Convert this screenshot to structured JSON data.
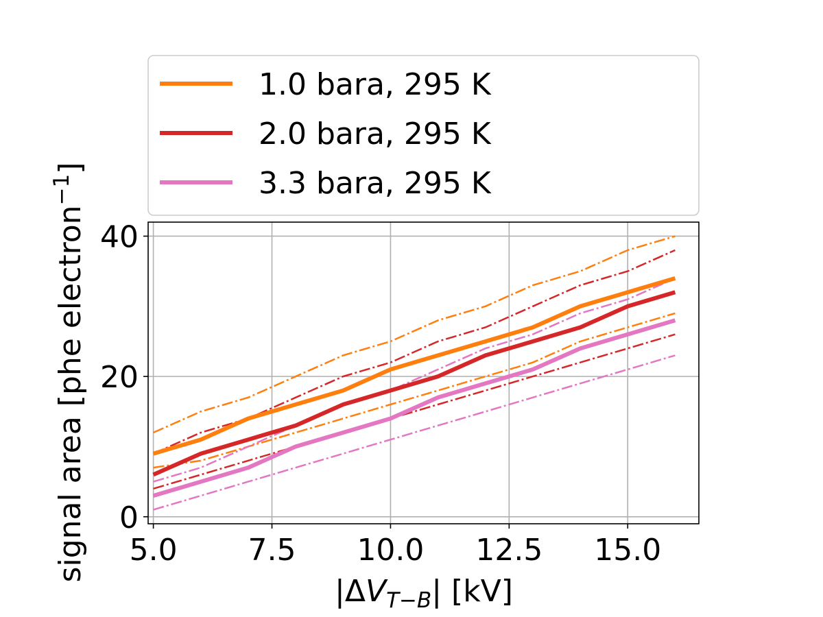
{
  "chart_data": {
    "type": "line",
    "x": [
      5,
      6,
      7,
      8,
      9,
      10,
      11,
      12,
      13,
      14,
      15,
      16
    ],
    "xlim": [
      4.89,
      16.5
    ],
    "ylim": [
      -1,
      42
    ],
    "xticks": [
      5.0,
      7.5,
      10.0,
      12.5,
      15.0
    ],
    "xtick_labels": [
      "5.0",
      "7.5",
      "10.0",
      "12.5",
      "15.0"
    ],
    "yticks": [
      0,
      20,
      40
    ],
    "ytick_labels": [
      "0",
      "20",
      "40"
    ],
    "xlabel_parts": {
      "prefix": "|Δ",
      "var": "V",
      "sub": "T−B",
      "suffix": "| [kV]"
    },
    "ylabel_parts": {
      "main": "signal area [phe electron",
      "sup": "−1",
      "close": "]"
    },
    "grid": true,
    "legend_position": "above plot",
    "series": [
      {
        "name": "1.0 bara, 295 K",
        "color": "#ff7f0e",
        "values": [
          9,
          11,
          14,
          16,
          18,
          21,
          23,
          25,
          27,
          30,
          32,
          34
        ],
        "upper": [
          12,
          15,
          17,
          20,
          23,
          25,
          28,
          30,
          33,
          35,
          38,
          40
        ],
        "lower": [
          7,
          8,
          10,
          12,
          14,
          16,
          18,
          20,
          22,
          25,
          27,
          29
        ]
      },
      {
        "name": "2.0 bara, 295 K",
        "color": "#d62728",
        "values": [
          6,
          9,
          11,
          13,
          16,
          18,
          20,
          23,
          25,
          27,
          30,
          32
        ],
        "upper": [
          9,
          12,
          14,
          17,
          20,
          22,
          25,
          27,
          30,
          33,
          35,
          38
        ],
        "lower": [
          4,
          6,
          8,
          10,
          12,
          14,
          16,
          18,
          20,
          22,
          24,
          26
        ]
      },
      {
        "name": "3.3 bara, 295 K",
        "color": "#e377c2",
        "values": [
          3,
          5,
          7,
          10,
          12,
          14,
          17,
          19,
          21,
          24,
          26,
          28
        ],
        "upper": [
          5,
          7,
          10,
          13,
          16,
          18,
          21,
          24,
          26,
          29,
          31,
          34
        ],
        "lower": [
          1,
          3,
          5,
          7,
          9,
          11,
          13,
          15,
          17,
          19,
          21,
          23
        ]
      }
    ]
  }
}
